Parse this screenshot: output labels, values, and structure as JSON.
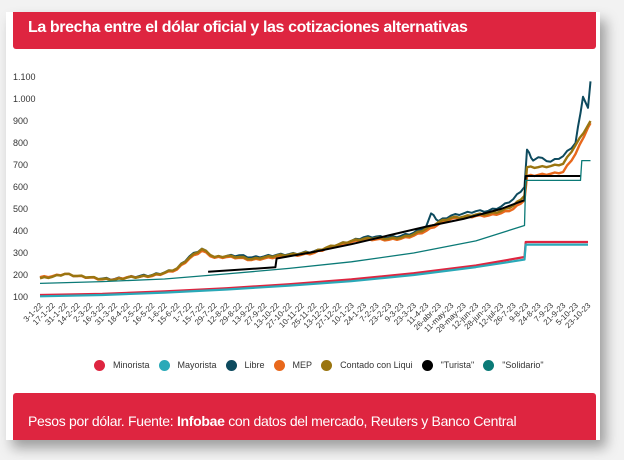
{
  "header": {
    "title": "La brecha entre el dólar oficial y las cotizaciones alternativas"
  },
  "footer": {
    "prefix": "Pesos por dólar. Fuente: ",
    "source_bold": "Infobae",
    "suffix": " con datos del mercado, Reuters y Banco Central"
  },
  "chart_data": {
    "type": "line",
    "title": "La brecha entre el dólar oficial y las cotizaciones alternativas",
    "xlabel": "",
    "ylabel": "Pesos por dólar",
    "ylim": [
      100,
      1100
    ],
    "grid": false,
    "legend_position": "bottom",
    "y_ticks": [
      "100",
      "200",
      "300",
      "400",
      "500",
      "600",
      "700",
      "800",
      "900",
      "1.000",
      "1.100"
    ],
    "y_tick_values": [
      100,
      200,
      300,
      400,
      500,
      600,
      700,
      800,
      900,
      1000,
      1100
    ],
    "categories": [
      "3-1-22",
      "17-1-22",
      "31-1-22",
      "14-2-22",
      "2-3-22",
      "16-3-22",
      "31-3-22",
      "18-4-22",
      "2-5-22",
      "16-5-22",
      "1-6-22",
      "15-6-22",
      "1-7-22",
      "15-7-22",
      "29-7-22",
      "12-8-22",
      "29-8-22",
      "13-9-22",
      "27-9-22",
      "13-10-22",
      "27-10-22",
      "10-11-22",
      "25-11-22",
      "13-12-22",
      "27-12-22",
      "10-1-23",
      "24-1-23",
      "7-2-23",
      "23-2-23",
      "9-3-23",
      "23-3-23",
      "11-4-23",
      "26-abr-23",
      "11-may-23",
      "29-may-23",
      "12-jun-23",
      "28-jun-23",
      "12-jul-23",
      "26-7-23",
      "9-8-23",
      "24-8-23",
      "7-9-23",
      "21-9-23",
      "5-10-23",
      "23-10-23"
    ],
    "x_note": "series points are [category_index, value]; fractional index = between ticks",
    "series": [
      {
        "name": "Minorista",
        "color": "#de2540",
        "points": [
          [
            0,
            109
          ],
          [
            5,
            114
          ],
          [
            10,
            126
          ],
          [
            15,
            140
          ],
          [
            20,
            158
          ],
          [
            25,
            180
          ],
          [
            30,
            208
          ],
          [
            35,
            243
          ],
          [
            38.9,
            282
          ],
          [
            39,
            350
          ],
          [
            44,
            350
          ]
        ]
      },
      {
        "name": "Mayorista",
        "color": "#2aa9b8",
        "points": [
          [
            0,
            103
          ],
          [
            5,
            109
          ],
          [
            10,
            120
          ],
          [
            15,
            134
          ],
          [
            20,
            152
          ],
          [
            25,
            172
          ],
          [
            30,
            200
          ],
          [
            35,
            236
          ],
          [
            38.9,
            270
          ],
          [
            39,
            338
          ],
          [
            44,
            338
          ]
        ]
      },
      {
        "name": "Libre",
        "color": "#0d4a5e",
        "points": [
          [
            0,
            190
          ],
          [
            1,
            192
          ],
          [
            2,
            205
          ],
          [
            3,
            195
          ],
          [
            4,
            188
          ],
          [
            5,
            184
          ],
          [
            6,
            182
          ],
          [
            7,
            190
          ],
          [
            8,
            196
          ],
          [
            9,
            200
          ],
          [
            10,
            212
          ],
          [
            11,
            230
          ],
          [
            12,
            285
          ],
          [
            13,
            320
          ],
          [
            14,
            280
          ],
          [
            15,
            287
          ],
          [
            16,
            290
          ],
          [
            17,
            280
          ],
          [
            18,
            285
          ],
          [
            19,
            292
          ],
          [
            20,
            295
          ],
          [
            21,
            300
          ],
          [
            22,
            308
          ],
          [
            23,
            320
          ],
          [
            24,
            340
          ],
          [
            25,
            355
          ],
          [
            26,
            372
          ],
          [
            27,
            375
          ],
          [
            28,
            370
          ],
          [
            29,
            378
          ],
          [
            30,
            392
          ],
          [
            31,
            420
          ],
          [
            31.4,
            480
          ],
          [
            32,
            445
          ],
          [
            33,
            470
          ],
          [
            34,
            480
          ],
          [
            35,
            490
          ],
          [
            36,
            492
          ],
          [
            37,
            510
          ],
          [
            38,
            545
          ],
          [
            38.9,
            600
          ],
          [
            39.1,
            770
          ],
          [
            39.6,
            720
          ],
          [
            40,
            735
          ],
          [
            41,
            715
          ],
          [
            42,
            740
          ],
          [
            43,
            800
          ],
          [
            43.6,
            1010
          ],
          [
            44,
            960
          ],
          [
            44.2,
            1080
          ]
        ]
      },
      {
        "name": "MEP",
        "color": "#e8681c",
        "points": [
          [
            0,
            190
          ],
          [
            1,
            195
          ],
          [
            2,
            205
          ],
          [
            3,
            195
          ],
          [
            4,
            188
          ],
          [
            5,
            180
          ],
          [
            6,
            180
          ],
          [
            7,
            190
          ],
          [
            8,
            192
          ],
          [
            9,
            195
          ],
          [
            10,
            208
          ],
          [
            11,
            225
          ],
          [
            12,
            275
          ],
          [
            13,
            310
          ],
          [
            14,
            278
          ],
          [
            15,
            282
          ],
          [
            16,
            278
          ],
          [
            17,
            268
          ],
          [
            18,
            275
          ],
          [
            19,
            282
          ],
          [
            20,
            288
          ],
          [
            21,
            292
          ],
          [
            22,
            300
          ],
          [
            23,
            320
          ],
          [
            24,
            335
          ],
          [
            25,
            350
          ],
          [
            26,
            360
          ],
          [
            27,
            362
          ],
          [
            28,
            360
          ],
          [
            29,
            365
          ],
          [
            30,
            378
          ],
          [
            31,
            400
          ],
          [
            32,
            430
          ],
          [
            33,
            455
          ],
          [
            34,
            460
          ],
          [
            35,
            468
          ],
          [
            36,
            470
          ],
          [
            37,
            480
          ],
          [
            38,
            500
          ],
          [
            38.9,
            540
          ],
          [
            39.1,
            650
          ],
          [
            40,
            655
          ],
          [
            41,
            660
          ],
          [
            42,
            668
          ],
          [
            43,
            750
          ],
          [
            44,
            870
          ],
          [
            44.2,
            890
          ]
        ]
      },
      {
        "name": "Contado con Liqui",
        "color": "#9a7510",
        "points": [
          [
            0,
            185
          ],
          [
            1,
            192
          ],
          [
            2,
            205
          ],
          [
            3,
            196
          ],
          [
            4,
            190
          ],
          [
            5,
            182
          ],
          [
            6,
            178
          ],
          [
            7,
            188
          ],
          [
            8,
            192
          ],
          [
            9,
            198
          ],
          [
            10,
            210
          ],
          [
            11,
            230
          ],
          [
            12,
            280
          ],
          [
            13,
            318
          ],
          [
            14,
            282
          ],
          [
            15,
            286
          ],
          [
            16,
            282
          ],
          [
            17,
            272
          ],
          [
            18,
            280
          ],
          [
            19,
            288
          ],
          [
            20,
            292
          ],
          [
            21,
            298
          ],
          [
            22,
            305
          ],
          [
            23,
            325
          ],
          [
            24,
            340
          ],
          [
            25,
            355
          ],
          [
            26,
            365
          ],
          [
            27,
            368
          ],
          [
            28,
            365
          ],
          [
            29,
            370
          ],
          [
            30,
            385
          ],
          [
            31,
            410
          ],
          [
            32,
            440
          ],
          [
            33,
            460
          ],
          [
            34,
            465
          ],
          [
            35,
            475
          ],
          [
            36,
            478
          ],
          [
            37,
            490
          ],
          [
            38,
            515
          ],
          [
            38.9,
            560
          ],
          [
            39.1,
            690
          ],
          [
            40,
            690
          ],
          [
            41,
            695
          ],
          [
            42,
            705
          ],
          [
            43,
            790
          ],
          [
            44,
            880
          ],
          [
            44.2,
            900
          ]
        ]
      },
      {
        "name": "\"Turista\"",
        "color": "#000000",
        "points": [
          [
            13.5,
            215
          ],
          [
            18.9,
            235
          ],
          [
            19,
            275
          ],
          [
            22,
            305
          ],
          [
            25,
            340
          ],
          [
            28,
            380
          ],
          [
            31,
            420
          ],
          [
            34,
            455
          ],
          [
            37,
            500
          ],
          [
            38.9,
            540
          ],
          [
            39,
            650
          ],
          [
            43.4,
            650
          ]
        ]
      },
      {
        "name": "\"Solidario\"",
        "color": "#0b7a77",
        "points": [
          [
            0,
            162
          ],
          [
            5,
            170
          ],
          [
            10,
            182
          ],
          [
            15,
            205
          ],
          [
            20,
            230
          ],
          [
            25,
            260
          ],
          [
            30,
            300
          ],
          [
            35,
            355
          ],
          [
            38.9,
            425
          ],
          [
            39,
            630
          ],
          [
            43.4,
            630
          ],
          [
            43.5,
            720
          ],
          [
            44.2,
            720
          ]
        ]
      }
    ]
  }
}
